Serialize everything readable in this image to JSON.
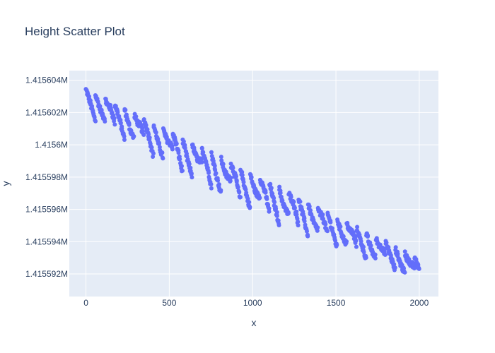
{
  "chart_data": {
    "type": "scatter",
    "title": "Height Scatter Plot",
    "xlabel": "x",
    "ylabel": "y",
    "xlim": [
      -100,
      2115
    ],
    "ylim": [
      1415590.6,
      1415604.6
    ],
    "x_ticks": [
      0,
      500,
      1000,
      1500,
      2000
    ],
    "x_tick_labels": [
      "0",
      "500",
      "1000",
      "1500",
      "2000"
    ],
    "y_ticks": [
      1415592,
      1415594,
      1415596,
      1415598,
      1415600,
      1415602,
      1415604
    ],
    "y_tick_labels": [
      "1.415592M",
      "1.415594M",
      "1.415596M",
      "1.415598M",
      "1.4156M",
      "1.415602M",
      "1.415604M"
    ],
    "grid": true,
    "legend": "none",
    "marker_color": "#636efa",
    "plot_bg": "#e5ecf6",
    "series": [
      {
        "x_start": 0,
        "x_end": 2000,
        "x_step": 2,
        "y_upper_start": 1415603.4,
        "y_upper_end": 1415592.8,
        "y_lower_start": 1415601.8,
        "y_lower_end": 1415591.4,
        "y_lower_mid": 1415593.8,
        "cycle_period": 58,
        "envelope_bulge": 2.2
      }
    ]
  }
}
